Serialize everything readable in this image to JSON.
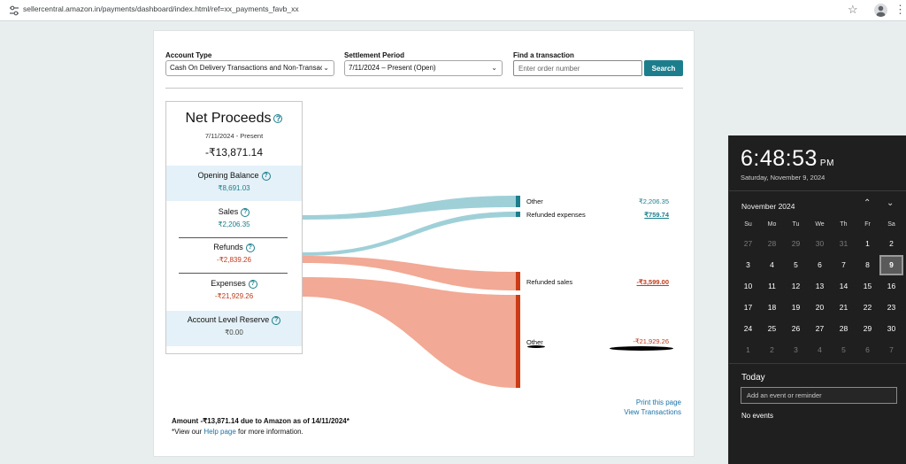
{
  "browser": {
    "url": "sellercentral.amazon.in/payments/dashboard/index.html/ref=xx_payments_favb_xx",
    "menu_glyph": "⋮",
    "star_glyph": "☆"
  },
  "filters": {
    "account_type_label": "Account Type",
    "account_type_value": "Cash On Delivery Transactions and Non-Transactions",
    "settlement_label": "Settlement Period",
    "settlement_value": "7/11/2024 – Present (Open)",
    "find_label": "Find a transaction",
    "find_placeholder": "Enter order number",
    "search_button": "Search"
  },
  "summary": {
    "title": "Net Proceeds",
    "date_range": "7/11/2024 - Present",
    "total": "-₹13,871.14",
    "rows": [
      {
        "label": "Opening Balance",
        "value": "₹8,691.03"
      },
      {
        "label": "Sales",
        "value": "₹2,206.35"
      },
      {
        "label": "Refunds",
        "value": "-₹2,839.26"
      },
      {
        "label": "Expenses",
        "value": "-₹21,929.26"
      },
      {
        "label": "Account Level Reserve",
        "value": "₹0.00"
      }
    ]
  },
  "flow_nodes": [
    {
      "label": "Other",
      "value": "₹2,206.35"
    },
    {
      "label": "Refunded expenses",
      "value": "₹759.74"
    },
    {
      "label": "Refunded sales",
      "value": "-₹3,599.00"
    },
    {
      "label": "Other",
      "value": "-₹21,929.26"
    }
  ],
  "colors": {
    "positive_flow": "#9fd0d8",
    "positive_node": "#1c7e8c",
    "negative_flow": "#f2a995",
    "negative_node": "#cc3b14",
    "accent": "#1c7e8c"
  },
  "links": {
    "print": "Print this page",
    "view": "View Transactions"
  },
  "footer": {
    "amount_line": "Amount -₹13,871.14 due to Amazon as of 14/11/2024*",
    "view_our": "*View our",
    "help_page": "Help page",
    "more_info": "for more information."
  },
  "calendar": {
    "time": "6:48:53",
    "ampm": "PM",
    "long_date": "Saturday, November 9, 2024",
    "month": "November 2024",
    "weekdays": [
      "Su",
      "Mo",
      "Tu",
      "We",
      "Th",
      "Fr",
      "Sa"
    ],
    "days": [
      "27",
      "28",
      "29",
      "30",
      "31",
      "1",
      "2",
      "3",
      "4",
      "5",
      "6",
      "7",
      "8",
      "9",
      "10",
      "11",
      "12",
      "13",
      "14",
      "15",
      "16",
      "17",
      "18",
      "19",
      "20",
      "21",
      "22",
      "23",
      "24",
      "25",
      "26",
      "27",
      "28",
      "29",
      "30",
      "1",
      "2",
      "3",
      "4",
      "5",
      "6",
      "7"
    ],
    "today_label": "Today",
    "add_event_placeholder": "Add an event or reminder",
    "no_events": "No events"
  }
}
